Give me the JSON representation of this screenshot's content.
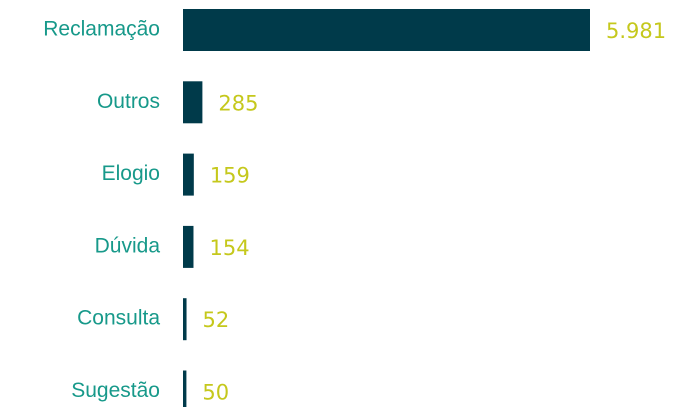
{
  "chart_data": {
    "type": "bar",
    "orientation": "horizontal",
    "categories": [
      "Reclamação",
      "Outros",
      "Elogio",
      "Dúvida",
      "Consulta",
      "Sugestão"
    ],
    "values": [
      5981,
      285,
      159,
      154,
      52,
      50
    ],
    "value_labels": [
      "5.981",
      "285",
      "159",
      "154",
      "52",
      "50"
    ],
    "color": "#003a4a"
  }
}
